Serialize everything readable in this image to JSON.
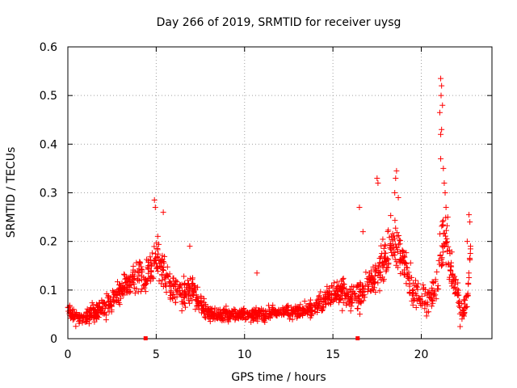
{
  "chart_data": {
    "type": "scatter",
    "title": "Day 266 of 2019, SRMTID for receiver uysg",
    "xlabel": "GPS time / hours",
    "ylabel": "SRMTID / TECUs",
    "xlim": [
      0,
      24
    ],
    "ylim": [
      0,
      0.6
    ],
    "x_ticks": [
      0,
      5,
      10,
      15,
      20
    ],
    "x_tick_labels": [
      "0",
      "5",
      "10",
      "15",
      "20"
    ],
    "y_ticks": [
      0,
      0.1,
      0.2,
      0.3,
      0.4,
      0.5,
      0.6
    ],
    "y_tick_labels": [
      "0",
      "0.1",
      "0.2",
      "0.3",
      "0.4",
      "0.5",
      "0.6"
    ],
    "grid": true,
    "marker": "plus",
    "color": "#ff0000",
    "axis_markers_x": [
      4.4,
      16.4
    ],
    "series": [
      {
        "name": "SRMTID",
        "trend": {
          "x": [
            0,
            0.3,
            0.8,
            1.5,
            2.0,
            2.5,
            3.0,
            3.5,
            4.0,
            4.3,
            4.7,
            5.0,
            5.3,
            5.6,
            6.0,
            6.5,
            7.0,
            7.5,
            8.0,
            9.0,
            10.0,
            11.0,
            12.0,
            13.0,
            14.0,
            14.5,
            15.0,
            15.5,
            16.0,
            16.5,
            17.0,
            17.5,
            18.0,
            18.5,
            19.0,
            19.5,
            20.0,
            20.5,
            21.0,
            21.3,
            21.6,
            22.0,
            22.3,
            22.6,
            22.8
          ],
          "y": [
            0.06,
            0.045,
            0.04,
            0.055,
            0.065,
            0.075,
            0.1,
            0.11,
            0.13,
            0.12,
            0.15,
            0.17,
            0.15,
            0.12,
            0.1,
            0.09,
            0.1,
            0.07,
            0.05,
            0.05,
            0.05,
            0.05,
            0.055,
            0.055,
            0.065,
            0.08,
            0.09,
            0.095,
            0.085,
            0.09,
            0.11,
            0.13,
            0.18,
            0.2,
            0.15,
            0.1,
            0.09,
            0.08,
            0.13,
            0.22,
            0.15,
            0.1,
            0.05,
            0.08,
            0.2
          ],
          "spread": [
            0.025,
            0.02,
            0.02,
            0.025,
            0.03,
            0.035,
            0.04,
            0.045,
            0.05,
            0.05,
            0.06,
            0.06,
            0.05,
            0.045,
            0.04,
            0.04,
            0.04,
            0.03,
            0.02,
            0.02,
            0.02,
            0.02,
            0.02,
            0.02,
            0.025,
            0.03,
            0.035,
            0.04,
            0.04,
            0.045,
            0.05,
            0.06,
            0.07,
            0.08,
            0.06,
            0.045,
            0.045,
            0.045,
            0.07,
            0.13,
            0.06,
            0.045,
            0.03,
            0.04,
            0.05
          ]
        },
        "points": [
          [
            4.9,
            0.285
          ],
          [
            4.95,
            0.27
          ],
          [
            5.4,
            0.26
          ],
          [
            6.9,
            0.19
          ],
          [
            10.7,
            0.135
          ],
          [
            16.5,
            0.27
          ],
          [
            16.7,
            0.22
          ],
          [
            17.5,
            0.33
          ],
          [
            17.55,
            0.32
          ],
          [
            18.6,
            0.345
          ],
          [
            18.55,
            0.33
          ],
          [
            18.5,
            0.3
          ],
          [
            18.7,
            0.29
          ],
          [
            21.1,
            0.535
          ],
          [
            21.15,
            0.52
          ],
          [
            21.12,
            0.5
          ],
          [
            21.2,
            0.48
          ],
          [
            21.05,
            0.465
          ],
          [
            21.15,
            0.43
          ],
          [
            21.1,
            0.42
          ],
          [
            21.1,
            0.37
          ],
          [
            21.25,
            0.35
          ],
          [
            21.3,
            0.32
          ],
          [
            21.35,
            0.3
          ],
          [
            21.4,
            0.27
          ],
          [
            21.5,
            0.25
          ],
          [
            22.7,
            0.255
          ],
          [
            22.75,
            0.24
          ],
          [
            22.6,
            0.2
          ],
          [
            22.2,
            0.025
          ]
        ]
      }
    ]
  }
}
